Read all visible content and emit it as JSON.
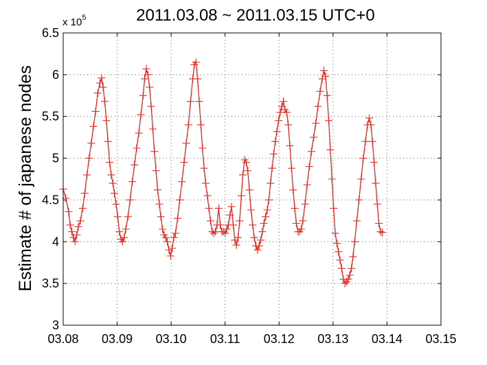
{
  "chart_data": {
    "type": "line",
    "title": "2011.03.08 ~ 2011.03.15 UTC+0",
    "ylabel": "Estimate # of japanese nodes",
    "xlabel": "",
    "exponent_label": {
      "base": "x 10",
      "power": "5"
    },
    "x_tick_labels": [
      "03.08",
      "03.09",
      "03.10",
      "03.11",
      "03.12",
      "03.13",
      "03.14",
      "03.15"
    ],
    "y_tick_labels": [
      "3",
      "3.5",
      "4",
      "4.5",
      "5",
      "5.5",
      "6",
      "6.5"
    ],
    "xlim": [
      0,
      7
    ],
    "ylim": [
      3,
      6.5
    ],
    "grid": true,
    "series": [
      {
        "color": "#e8251c",
        "marker": "plus",
        "x_unit": "days since 03.08",
        "points": [
          [
            0.0,
            4.63
          ],
          [
            0.05,
            4.52
          ],
          [
            0.1,
            4.36
          ],
          [
            0.13,
            4.2
          ],
          [
            0.16,
            4.12
          ],
          [
            0.19,
            4.05
          ],
          [
            0.22,
            4.0
          ],
          [
            0.25,
            4.08
          ],
          [
            0.28,
            4.18
          ],
          [
            0.32,
            4.25
          ],
          [
            0.36,
            4.4
          ],
          [
            0.4,
            4.58
          ],
          [
            0.44,
            4.8
          ],
          [
            0.48,
            5.0
          ],
          [
            0.52,
            5.18
          ],
          [
            0.56,
            5.38
          ],
          [
            0.6,
            5.56
          ],
          [
            0.64,
            5.78
          ],
          [
            0.68,
            5.9
          ],
          [
            0.71,
            5.96
          ],
          [
            0.74,
            5.85
          ],
          [
            0.77,
            5.68
          ],
          [
            0.8,
            5.45
          ],
          [
            0.83,
            5.2
          ],
          [
            0.86,
            4.95
          ],
          [
            0.89,
            4.8
          ],
          [
            0.92,
            4.7
          ],
          [
            0.95,
            4.58
          ],
          [
            0.98,
            4.45
          ],
          [
            1.01,
            4.3
          ],
          [
            1.04,
            4.12
          ],
          [
            1.07,
            4.03
          ],
          [
            1.1,
            4.0
          ],
          [
            1.13,
            4.05
          ],
          [
            1.16,
            4.15
          ],
          [
            1.2,
            4.3
          ],
          [
            1.24,
            4.5
          ],
          [
            1.28,
            4.72
          ],
          [
            1.32,
            4.92
          ],
          [
            1.36,
            5.12
          ],
          [
            1.4,
            5.3
          ],
          [
            1.44,
            5.52
          ],
          [
            1.48,
            5.75
          ],
          [
            1.51,
            5.95
          ],
          [
            1.54,
            6.07
          ],
          [
            1.57,
            6.0
          ],
          [
            1.6,
            5.85
          ],
          [
            1.63,
            5.62
          ],
          [
            1.66,
            5.35
          ],
          [
            1.69,
            5.08
          ],
          [
            1.72,
            4.85
          ],
          [
            1.75,
            4.62
          ],
          [
            1.78,
            4.45
          ],
          [
            1.81,
            4.3
          ],
          [
            1.84,
            4.15
          ],
          [
            1.87,
            4.08
          ],
          [
            1.9,
            4.05
          ],
          [
            1.93,
            4.0
          ],
          [
            1.96,
            3.9
          ],
          [
            1.99,
            3.83
          ],
          [
            2.02,
            3.92
          ],
          [
            2.05,
            4.05
          ],
          [
            2.08,
            4.1
          ],
          [
            2.12,
            4.28
          ],
          [
            2.16,
            4.5
          ],
          [
            2.2,
            4.72
          ],
          [
            2.24,
            4.95
          ],
          [
            2.28,
            5.18
          ],
          [
            2.32,
            5.4
          ],
          [
            2.36,
            5.68
          ],
          [
            2.4,
            5.95
          ],
          [
            2.43,
            6.12
          ],
          [
            2.46,
            6.15
          ],
          [
            2.49,
            5.95
          ],
          [
            2.52,
            5.68
          ],
          [
            2.55,
            5.4
          ],
          [
            2.58,
            5.12
          ],
          [
            2.61,
            4.88
          ],
          [
            2.64,
            4.7
          ],
          [
            2.67,
            4.55
          ],
          [
            2.7,
            4.4
          ],
          [
            2.73,
            4.25
          ],
          [
            2.76,
            4.12
          ],
          [
            2.79,
            4.1
          ],
          [
            2.82,
            4.12
          ],
          [
            2.85,
            4.2
          ],
          [
            2.88,
            4.4
          ],
          [
            2.91,
            4.2
          ],
          [
            2.94,
            4.12
          ],
          [
            2.97,
            4.12
          ],
          [
            3.0,
            4.1
          ],
          [
            3.03,
            4.15
          ],
          [
            3.06,
            4.2
          ],
          [
            3.09,
            4.32
          ],
          [
            3.12,
            4.42
          ],
          [
            3.15,
            4.2
          ],
          [
            3.18,
            4.02
          ],
          [
            3.21,
            3.96
          ],
          [
            3.24,
            4.05
          ],
          [
            3.27,
            4.25
          ],
          [
            3.3,
            4.55
          ],
          [
            3.33,
            4.8
          ],
          [
            3.36,
            4.98
          ],
          [
            3.39,
            4.95
          ],
          [
            3.42,
            4.85
          ],
          [
            3.45,
            4.62
          ],
          [
            3.48,
            4.38
          ],
          [
            3.51,
            4.2
          ],
          [
            3.54,
            4.05
          ],
          [
            3.57,
            3.95
          ],
          [
            3.6,
            3.9
          ],
          [
            3.63,
            3.95
          ],
          [
            3.66,
            4.02
          ],
          [
            3.69,
            4.12
          ],
          [
            3.72,
            4.22
          ],
          [
            3.75,
            4.3
          ],
          [
            3.78,
            4.38
          ],
          [
            3.81,
            4.5
          ],
          [
            3.84,
            4.7
          ],
          [
            3.87,
            4.88
          ],
          [
            3.9,
            5.05
          ],
          [
            3.93,
            5.2
          ],
          [
            3.96,
            5.32
          ],
          [
            3.99,
            5.45
          ],
          [
            4.02,
            5.55
          ],
          [
            4.05,
            5.62
          ],
          [
            4.08,
            5.68
          ],
          [
            4.11,
            5.58
          ],
          [
            4.14,
            5.55
          ],
          [
            4.17,
            5.4
          ],
          [
            4.2,
            5.15
          ],
          [
            4.23,
            4.88
          ],
          [
            4.26,
            4.62
          ],
          [
            4.29,
            4.4
          ],
          [
            4.32,
            4.22
          ],
          [
            4.35,
            4.12
          ],
          [
            4.38,
            4.12
          ],
          [
            4.41,
            4.15
          ],
          [
            4.44,
            4.25
          ],
          [
            4.48,
            4.45
          ],
          [
            4.52,
            4.68
          ],
          [
            4.56,
            4.9
          ],
          [
            4.6,
            5.08
          ],
          [
            4.64,
            5.25
          ],
          [
            4.68,
            5.42
          ],
          [
            4.72,
            5.62
          ],
          [
            4.76,
            5.8
          ],
          [
            4.8,
            5.95
          ],
          [
            4.83,
            6.05
          ],
          [
            4.86,
            5.98
          ],
          [
            4.89,
            5.75
          ],
          [
            4.92,
            5.45
          ],
          [
            4.95,
            5.1
          ],
          [
            4.98,
            4.75
          ],
          [
            5.01,
            4.4
          ],
          [
            5.04,
            4.1
          ],
          [
            5.07,
            3.98
          ],
          [
            5.1,
            3.88
          ],
          [
            5.13,
            3.78
          ],
          [
            5.16,
            3.68
          ],
          [
            5.19,
            3.55
          ],
          [
            5.22,
            3.5
          ],
          [
            5.25,
            3.52
          ],
          [
            5.28,
            3.55
          ],
          [
            5.31,
            3.6
          ],
          [
            5.34,
            3.68
          ],
          [
            5.37,
            3.82
          ],
          [
            5.4,
            4.0
          ],
          [
            5.44,
            4.25
          ],
          [
            5.48,
            4.5
          ],
          [
            5.52,
            4.75
          ],
          [
            5.56,
            5.0
          ],
          [
            5.6,
            5.2
          ],
          [
            5.64,
            5.4
          ],
          [
            5.67,
            5.48
          ],
          [
            5.7,
            5.4
          ],
          [
            5.73,
            5.2
          ],
          [
            5.76,
            4.95
          ],
          [
            5.79,
            4.7
          ],
          [
            5.82,
            4.45
          ],
          [
            5.85,
            4.22
          ],
          [
            5.88,
            4.12
          ],
          [
            5.91,
            4.11
          ]
        ]
      }
    ]
  }
}
